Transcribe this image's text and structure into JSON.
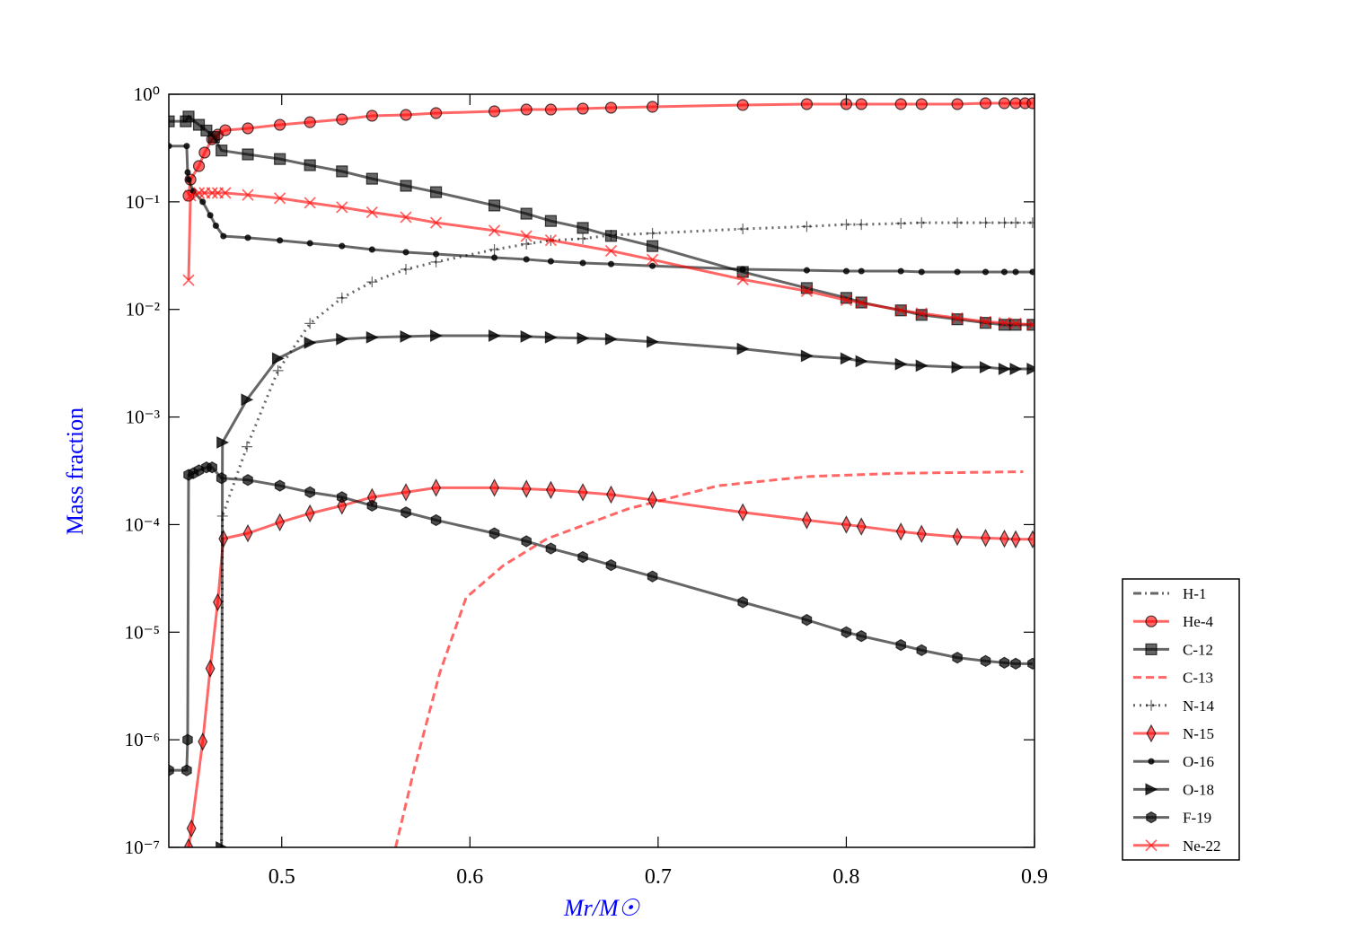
{
  "chart_data": {
    "type": "line",
    "xlabel": "Mr/M☉",
    "ylabel": "Mass fraction",
    "label_color": "#0000ff",
    "xlim": [
      0.44,
      0.9
    ],
    "ylim": [
      1e-07,
      1
    ],
    "yscale": "log",
    "xticks": [
      0.5,
      0.6,
      0.7,
      0.8,
      0.9
    ],
    "yticks": [
      {
        "value": 1e-07,
        "label": "10⁻⁷"
      },
      {
        "value": 1e-06,
        "label": "10⁻⁶"
      },
      {
        "value": 1e-05,
        "label": "10⁻⁵"
      },
      {
        "value": 0.0001,
        "label": "10⁻⁴"
      },
      {
        "value": 0.001,
        "label": "10⁻³"
      },
      {
        "value": 0.01,
        "label": "10⁻²"
      },
      {
        "value": 0.1,
        "label": "10⁻¹"
      },
      {
        "value": 1,
        "label": "10⁰"
      }
    ],
    "legend": "outside-lower-right",
    "series": [
      {
        "name": "H-1",
        "color": "#000000",
        "alpha": 0.6,
        "linestyle": "dashdot",
        "marker": "none",
        "x": [],
        "values": []
      },
      {
        "name": "He-4",
        "color": "#ff0000",
        "alpha": 0.6,
        "linestyle": "solid",
        "marker": "circle",
        "x": [
          0.4505,
          0.4515,
          0.456,
          0.459,
          0.463,
          0.466,
          0.47,
          0.482,
          0.499,
          0.515,
          0.532,
          0.548,
          0.566,
          0.582,
          0.613,
          0.63,
          0.643,
          0.66,
          0.675,
          0.697,
          0.745,
          0.779,
          0.8,
          0.808,
          0.829,
          0.84,
          0.859,
          0.874,
          0.884,
          0.89,
          0.895,
          0.899
        ],
        "values": [
          0.114,
          0.161,
          0.215,
          0.287,
          0.382,
          0.421,
          0.463,
          0.482,
          0.52,
          0.55,
          0.584,
          0.631,
          0.643,
          0.668,
          0.694,
          0.721,
          0.721,
          0.735,
          0.75,
          0.764,
          0.794,
          0.81,
          0.81,
          0.81,
          0.81,
          0.81,
          0.81,
          0.825,
          0.825,
          0.825,
          0.825,
          0.825
        ]
      },
      {
        "name": "C-12",
        "color": "#000000",
        "alpha": 0.6,
        "linestyle": "solid",
        "marker": "square",
        "x": [
          0.44,
          0.449,
          0.4505,
          0.456,
          0.46,
          0.464,
          0.468,
          0.482,
          0.499,
          0.515,
          0.532,
          0.548,
          0.566,
          0.582,
          0.613,
          0.63,
          0.643,
          0.66,
          0.675,
          0.697,
          0.745,
          0.779,
          0.8,
          0.808,
          0.829,
          0.84,
          0.859,
          0.874,
          0.884,
          0.89,
          0.899
        ],
        "values": [
          0.56,
          0.56,
          0.62,
          0.52,
          0.46,
          0.4,
          0.3,
          0.276,
          0.25,
          0.219,
          0.192,
          0.164,
          0.141,
          0.123,
          0.0925,
          0.0776,
          0.0664,
          0.0572,
          0.0482,
          0.0388,
          0.0223,
          0.0158,
          0.0128,
          0.0116,
          0.0098,
          0.0089,
          0.0081,
          0.0075,
          0.0072,
          0.0072,
          0.0072
        ]
      },
      {
        "name": "C-13",
        "color": "#ff0000",
        "alpha": 0.6,
        "linestyle": "dashed",
        "marker": "none",
        "x": [
          0.5605,
          0.57,
          0.584,
          0.598,
          0.618,
          0.641,
          0.684,
          0.732,
          0.78,
          0.828,
          0.894
        ],
        "values": [
          1e-07,
          5e-07,
          4.2e-06,
          2.1e-05,
          4.2e-05,
          7.4e-05,
          0.00014,
          0.00023,
          0.00028,
          0.0003,
          0.00031
        ]
      },
      {
        "name": "N-14",
        "color": "#000000",
        "alpha": 0.6,
        "linestyle": "dotted",
        "marker": "plus",
        "x": [
          0.468,
          0.4685,
          0.4815,
          0.498,
          0.515,
          0.532,
          0.548,
          0.566,
          0.582,
          0.613,
          0.63,
          0.643,
          0.66,
          0.675,
          0.697,
          0.745,
          0.779,
          0.8,
          0.808,
          0.829,
          0.84,
          0.859,
          0.874,
          0.884,
          0.89,
          0.899
        ],
        "values": [
          1e-07,
          0.00012,
          0.00053,
          0.0027,
          0.0074,
          0.0128,
          0.018,
          0.0236,
          0.0276,
          0.036,
          0.0405,
          0.0438,
          0.0455,
          0.049,
          0.051,
          0.056,
          0.059,
          0.0616,
          0.0616,
          0.063,
          0.064,
          0.064,
          0.064,
          0.064,
          0.064,
          0.064
        ]
      },
      {
        "name": "N-15",
        "color": "#ff0000",
        "alpha": 0.6,
        "linestyle": "solid",
        "marker": "diamond",
        "x": [
          0.4505,
          0.452,
          0.458,
          0.462,
          0.466,
          0.469,
          0.482,
          0.499,
          0.515,
          0.532,
          0.548,
          0.566,
          0.582,
          0.613,
          0.63,
          0.643,
          0.66,
          0.675,
          0.697,
          0.745,
          0.779,
          0.8,
          0.808,
          0.829,
          0.84,
          0.859,
          0.874,
          0.884,
          0.89,
          0.899
        ],
        "values": [
          1e-07,
          1.5e-07,
          9.6e-07,
          4.6e-06,
          1.9e-05,
          7.4e-05,
          8.3e-05,
          0.000105,
          0.000127,
          0.00015,
          0.00018,
          0.0002,
          0.00022,
          0.00022,
          0.000215,
          0.00021,
          0.0002,
          0.00019,
          0.00017,
          0.00013,
          0.00011,
          0.0001,
          9.6e-05,
          8.6e-05,
          8.2e-05,
          7.7e-05,
          7.5e-05,
          7.4e-05,
          7.3e-05,
          7.3e-05
        ]
      },
      {
        "name": "O-16",
        "color": "#000000",
        "alpha": 0.6,
        "linestyle": "solid",
        "marker": "dot",
        "x": [
          0.44,
          0.4495,
          0.45,
          0.4505,
          0.453,
          0.458,
          0.462,
          0.465,
          0.469,
          0.482,
          0.499,
          0.515,
          0.532,
          0.548,
          0.566,
          0.582,
          0.613,
          0.63,
          0.643,
          0.66,
          0.675,
          0.697,
          0.745,
          0.779,
          0.8,
          0.808,
          0.829,
          0.84,
          0.859,
          0.874,
          0.884,
          0.89,
          0.899
        ],
        "values": [
          0.33,
          0.33,
          0.188,
          0.161,
          0.126,
          0.1,
          0.075,
          0.06,
          0.048,
          0.0464,
          0.0438,
          0.0412,
          0.0388,
          0.036,
          0.034,
          0.0327,
          0.0303,
          0.0292,
          0.028,
          0.027,
          0.0264,
          0.0254,
          0.0236,
          0.0231,
          0.0227,
          0.0227,
          0.0227,
          0.0223,
          0.0223,
          0.0223,
          0.0223,
          0.0223,
          0.0223
        ]
      },
      {
        "name": "O-18",
        "color": "#000000",
        "alpha": 0.6,
        "linestyle": "solid",
        "marker": "triangle-right",
        "x": [
          0.468,
          0.4685,
          0.4815,
          0.498,
          0.515,
          0.532,
          0.548,
          0.566,
          0.582,
          0.613,
          0.63,
          0.643,
          0.66,
          0.675,
          0.697,
          0.745,
          0.779,
          0.8,
          0.808,
          0.829,
          0.84,
          0.859,
          0.874,
          0.884,
          0.89,
          0.899
        ],
        "values": [
          1e-07,
          0.00058,
          0.00145,
          0.0035,
          0.0049,
          0.0053,
          0.0055,
          0.0056,
          0.0057,
          0.0057,
          0.0056,
          0.0055,
          0.0054,
          0.0053,
          0.005,
          0.0043,
          0.0037,
          0.0035,
          0.0033,
          0.0031,
          0.003,
          0.0029,
          0.0029,
          0.0028,
          0.0028,
          0.0028
        ]
      },
      {
        "name": "F-19",
        "color": "#000000",
        "alpha": 0.6,
        "linestyle": "solid",
        "marker": "hexagon",
        "x": [
          0.44,
          0.4495,
          0.45,
          0.4505,
          0.453,
          0.456,
          0.46,
          0.463,
          0.468,
          0.482,
          0.499,
          0.515,
          0.532,
          0.548,
          0.566,
          0.582,
          0.613,
          0.63,
          0.643,
          0.66,
          0.675,
          0.697,
          0.745,
          0.779,
          0.8,
          0.808,
          0.829,
          0.84,
          0.859,
          0.874,
          0.884,
          0.89,
          0.899
        ],
        "values": [
          5.2e-07,
          5.2e-07,
          1e-06,
          0.00029,
          0.0003,
          0.00032,
          0.00034,
          0.00034,
          0.00027,
          0.00026,
          0.00023,
          0.0002,
          0.00018,
          0.00015,
          0.00013,
          0.00011,
          8.3e-05,
          7e-05,
          6e-05,
          5e-05,
          4.2e-05,
          3.3e-05,
          1.9e-05,
          1.3e-05,
          1e-05,
          9.2e-06,
          7.6e-06,
          6.8e-06,
          5.8e-06,
          5.4e-06,
          5.2e-06,
          5.1e-06,
          5.1e-06
        ]
      },
      {
        "name": "Ne-22",
        "color": "#ff0000",
        "alpha": 0.6,
        "linestyle": "solid",
        "marker": "x",
        "x": [
          0.4505,
          0.4515,
          0.456,
          0.459,
          0.463,
          0.466,
          0.47,
          0.482,
          0.499,
          0.515,
          0.532,
          0.548,
          0.566,
          0.582,
          0.613,
          0.63,
          0.643,
          0.675,
          0.697,
          0.745,
          0.779,
          0.8,
          0.808,
          0.829,
          0.84,
          0.859,
          0.874,
          0.884,
          0.89,
          0.899
        ],
        "values": [
          0.0187,
          0.114,
          0.121,
          0.121,
          0.121,
          0.121,
          0.121,
          0.116,
          0.108,
          0.098,
          0.089,
          0.08,
          0.072,
          0.064,
          0.054,
          0.048,
          0.044,
          0.035,
          0.029,
          0.019,
          0.0148,
          0.0122,
          0.0115,
          0.0098,
          0.0092,
          0.0083,
          0.0077,
          0.0075,
          0.0074,
          0.0072
        ]
      }
    ]
  }
}
